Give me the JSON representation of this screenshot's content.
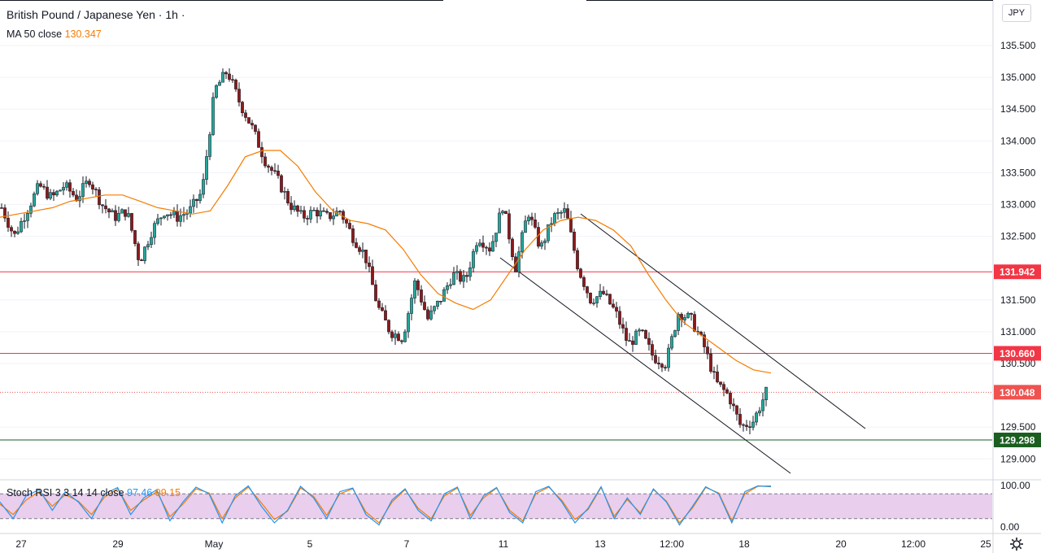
{
  "header": {
    "symbol_title": "British Pound / Japanese Yen · 1h ·",
    "ma_label": "MA 50 close",
    "ma_value": "130.347",
    "currency_button": "JPY"
  },
  "stoch_legend": {
    "label": "Stoch RSI 3 3 14 14 close",
    "k_value": "97.46",
    "d_value": "99.15"
  },
  "price_axis": {
    "ticks": [
      "135.500",
      "135.000",
      "134.500",
      "134.000",
      "133.500",
      "133.000",
      "132.500",
      "131.500",
      "131.000",
      "130.500",
      "129.500",
      "129.000"
    ],
    "tick_values": [
      135.5,
      135.0,
      134.5,
      134.0,
      133.5,
      133.0,
      132.5,
      131.5,
      131.0,
      130.5,
      129.5,
      129.0
    ],
    "levels": [
      {
        "label": "131.942",
        "value": 131.942,
        "color": "#f23645",
        "style": "solid"
      },
      {
        "label": "130.660",
        "value": 130.66,
        "color": "#f23645",
        "style": "solid"
      },
      {
        "label": "130.048",
        "value": 130.048,
        "color": "#ef5350",
        "style": "dotted"
      },
      {
        "label": "129.298",
        "value": 129.298,
        "color": "#1b5e20",
        "style": "solid"
      }
    ]
  },
  "stoch_axis": {
    "ticks": [
      "100.00",
      "0.00"
    ],
    "tick_values": [
      100,
      0
    ],
    "band_upper": 80,
    "band_lower": 20
  },
  "time_axis": {
    "labels": [
      "27",
      "29",
      "May",
      "5",
      "7",
      "11",
      "13",
      "12:00",
      "18",
      "20",
      "12:00",
      "25"
    ]
  },
  "colors": {
    "up": "#26a69a",
    "down": "#ef5350",
    "candle_up_body": "#26a69a",
    "candle_down_body": "#8b1a1a",
    "ma": "#f57c00",
    "stoch_k": "#2196f3",
    "stoch_d": "#f57c00",
    "stoch_band": "#e1bee7"
  },
  "chart_data": {
    "type": "line",
    "series": [
      {
        "name": "British Pound / Japanese Yen",
        "values": [
          132.95,
          132.5,
          132.9,
          133.3,
          133.1,
          133.3,
          133.1,
          133.4,
          133.0,
          132.8,
          132.9,
          132.1,
          132.6,
          132.9,
          132.8,
          132.9,
          133.2,
          134.8,
          135.1,
          134.6,
          134.2,
          133.7,
          133.4,
          133.0,
          132.8,
          132.9,
          132.8,
          132.9,
          132.5,
          132.2,
          131.4,
          131.0,
          130.9,
          131.8,
          131.2,
          131.5,
          131.9,
          131.8,
          132.5,
          132.3,
          133.0,
          132.0,
          132.9,
          132.3,
          132.8,
          132.9,
          132.0,
          131.5,
          131.6,
          131.3,
          130.8,
          131.0,
          130.6,
          130.5,
          131.3,
          131.2,
          130.8,
          130.2,
          130.0,
          129.5,
          129.6,
          130.05
        ]
      },
      {
        "name": "MA 50 close",
        "values": [
          132.8,
          132.85,
          132.9,
          132.95,
          133.05,
          133.1,
          133.15,
          133.15,
          133.05,
          132.95,
          132.9,
          132.85,
          132.9,
          133.3,
          133.75,
          133.85,
          133.85,
          133.6,
          133.2,
          132.9,
          132.75,
          132.7,
          132.6,
          132.3,
          131.9,
          131.6,
          131.45,
          131.35,
          131.5,
          131.9,
          132.3,
          132.6,
          132.75,
          132.8,
          132.75,
          132.6,
          132.35,
          131.9,
          131.5,
          131.15,
          130.95,
          130.75,
          130.55,
          130.4,
          130.35
        ]
      }
    ],
    "stoch_rsi": {
      "k": [
        60,
        20,
        75,
        90,
        40,
        85,
        60,
        20,
        80,
        95,
        30,
        70,
        90,
        15,
        60,
        96,
        80,
        10,
        75,
        99,
        50,
        10,
        40,
        98,
        70,
        20,
        85,
        94,
        30,
        5,
        65,
        92,
        40,
        15,
        80,
        96,
        20,
        75,
        95,
        35,
        10,
        85,
        98,
        60,
        10,
        45,
        97,
        20,
        70,
        30,
        92,
        60,
        5,
        50,
        97,
        80,
        10,
        85,
        99,
        97
      ],
      "d": [
        55,
        30,
        65,
        85,
        50,
        78,
        62,
        30,
        72,
        92,
        40,
        65,
        85,
        25,
        55,
        92,
        82,
        20,
        70,
        96,
        58,
        18,
        38,
        94,
        74,
        28,
        80,
        92,
        36,
        10,
        60,
        90,
        45,
        20,
        75,
        94,
        28,
        70,
        94,
        40,
        15,
        80,
        96,
        64,
        18,
        42,
        95,
        26,
        66,
        34,
        90,
        62,
        10,
        46,
        95,
        82,
        15,
        80,
        98,
        99
      ]
    },
    "ylim": [
      128.75,
      135.85
    ]
  }
}
